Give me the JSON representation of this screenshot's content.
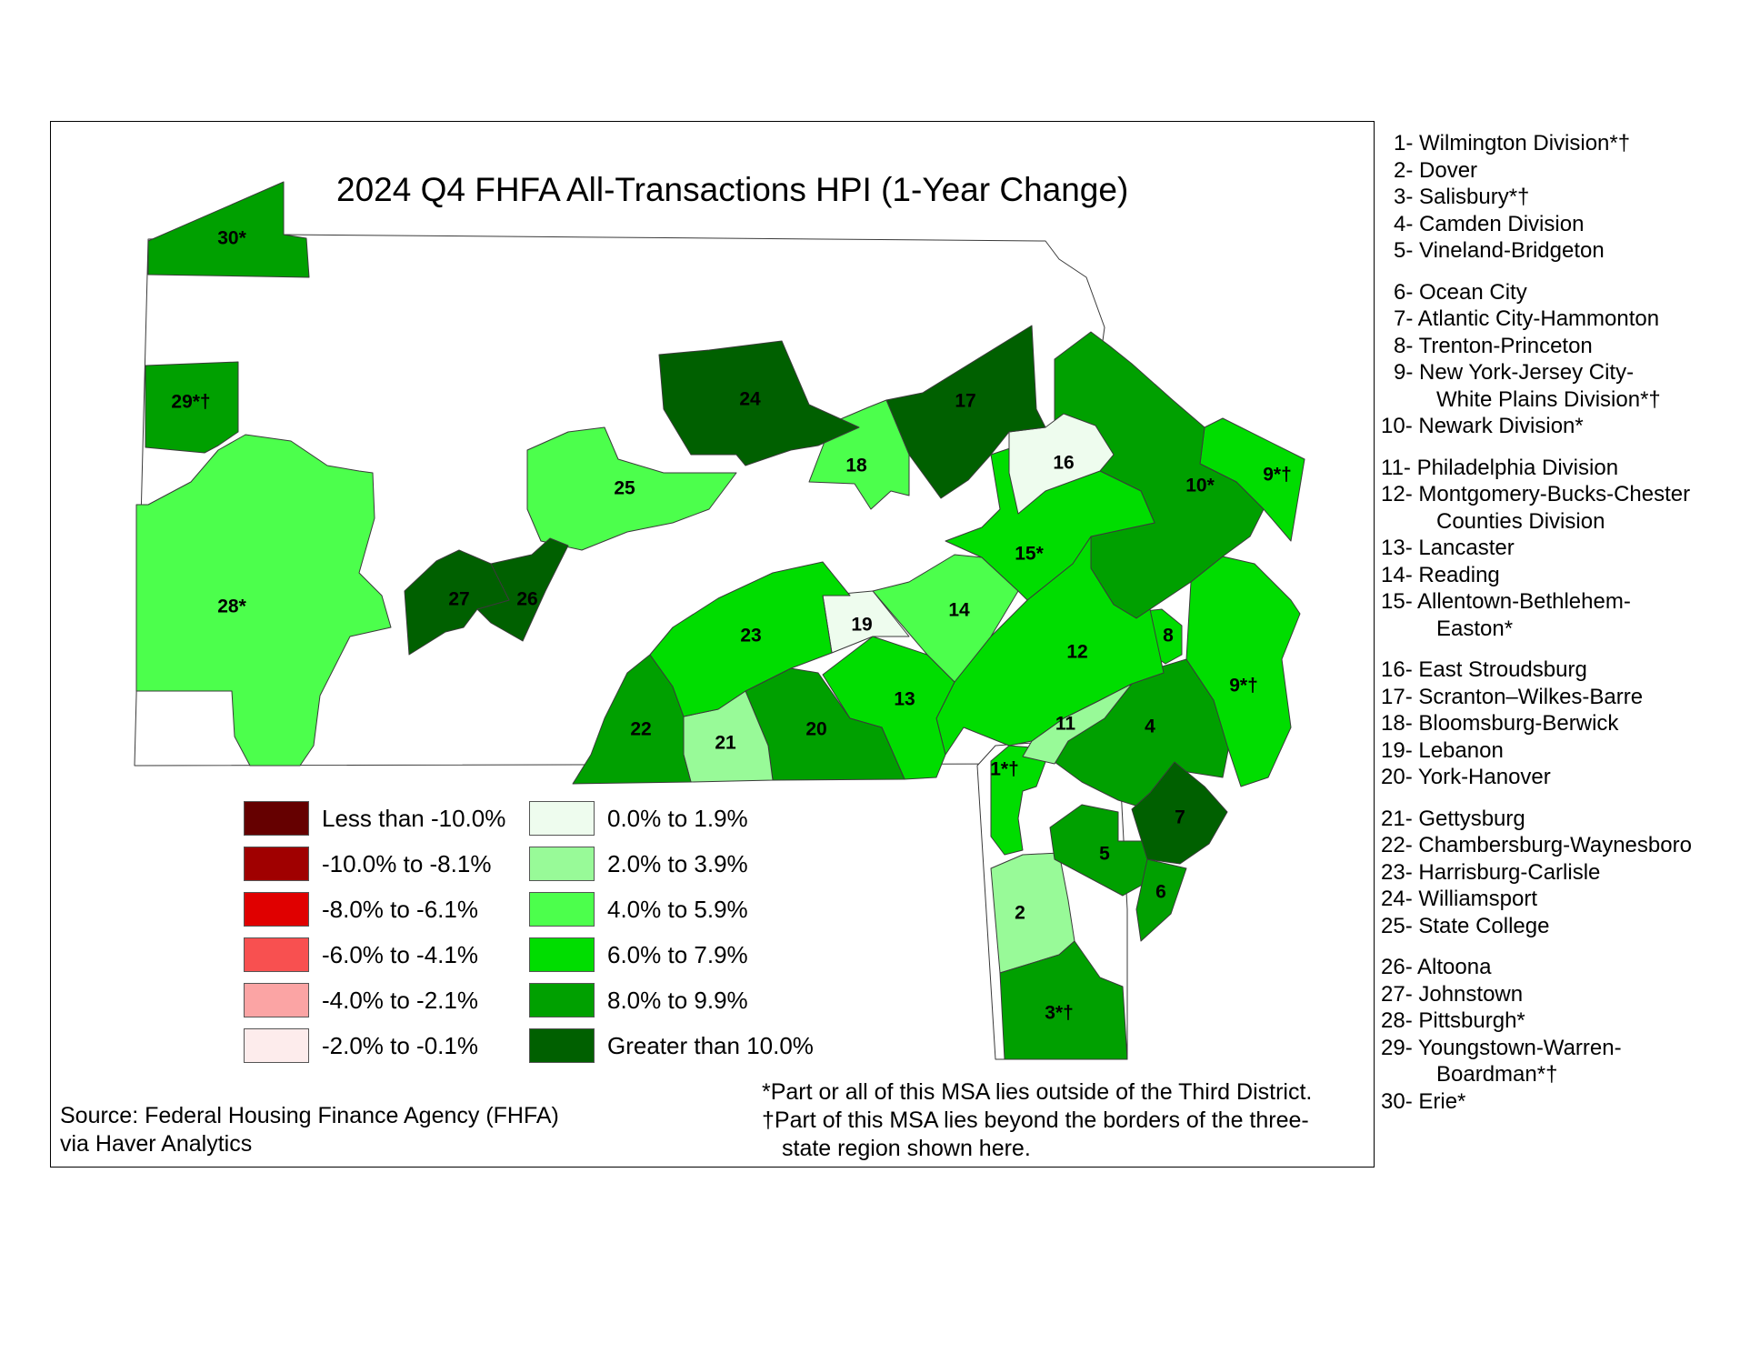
{
  "title": "2024 Q4 FHFA All-Transactions HPI (1-Year Change)",
  "legend": [
    {
      "label": "Less than -10.0%",
      "color": "#650000"
    },
    {
      "label": "-10.0% to -8.1%",
      "color": "#a00000"
    },
    {
      "label": "-8.0% to -6.1%",
      "color": "#e00000"
    },
    {
      "label": "-6.0% to -4.1%",
      "color": "#f85050"
    },
    {
      "label": "-4.0% to -2.1%",
      "color": "#fba4a4"
    },
    {
      "label": "-2.0% to -0.1%",
      "color": "#fdecec"
    },
    {
      "label": "0.0% to 1.9%",
      "color": "#eefcee"
    },
    {
      "label": "2.0% to 3.9%",
      "color": "#98fa98"
    },
    {
      "label": "4.0% to 5.9%",
      "color": "#4cff4c"
    },
    {
      "label": "6.0% to 7.9%",
      "color": "#00dd00"
    },
    {
      "label": "8.0% to 9.9%",
      "color": "#00a000"
    },
    {
      "label": "Greater than 10.0%",
      "color": "#006000"
    }
  ],
  "regions": [
    {
      "label": "1*†",
      "bin": 9
    },
    {
      "label": "2",
      "bin": 7
    },
    {
      "label": "3*†",
      "bin": 10
    },
    {
      "label": "4",
      "bin": 10
    },
    {
      "label": "5",
      "bin": 10
    },
    {
      "label": "6",
      "bin": 10
    },
    {
      "label": "7",
      "bin": 11
    },
    {
      "label": "8",
      "bin": 9
    },
    {
      "label": "9*†",
      "bin": 9
    },
    {
      "label": "9*†",
      "bin": 9
    },
    {
      "label": "10*",
      "bin": 10
    },
    {
      "label": "11",
      "bin": 7
    },
    {
      "label": "12",
      "bin": 9
    },
    {
      "label": "13",
      "bin": 9
    },
    {
      "label": "14",
      "bin": 8
    },
    {
      "label": "15*",
      "bin": 9
    },
    {
      "label": "16",
      "bin": 6
    },
    {
      "label": "17",
      "bin": 11
    },
    {
      "label": "18",
      "bin": 8
    },
    {
      "label": "19",
      "bin": 6
    },
    {
      "label": "20",
      "bin": 10
    },
    {
      "label": "21",
      "bin": 7
    },
    {
      "label": "22",
      "bin": 10
    },
    {
      "label": "23",
      "bin": 9
    },
    {
      "label": "24",
      "bin": 11
    },
    {
      "label": "25",
      "bin": 8
    },
    {
      "label": "26",
      "bin": 11
    },
    {
      "label": "27",
      "bin": 11
    },
    {
      "label": "28*",
      "bin": 8
    },
    {
      "label": "29*†",
      "bin": 10
    },
    {
      "label": "30*",
      "bin": 10
    }
  ],
  "key": [
    [
      "1- Wilmington Division*†",
      "2- Dover",
      "3- Salisbury*†",
      "4- Camden Division",
      "5- Vineland-Bridgeton"
    ],
    [
      "6- Ocean City",
      "7- Atlantic City-Hammonton",
      "8- Trenton-Princeton",
      "9- New York-Jersey City-",
      "   White Plains Division*†",
      "10- Newark Division*"
    ],
    [
      "11- Philadelphia Division",
      "12- Montgomery-Bucks-Chester",
      "   Counties Division",
      "13- Lancaster",
      "14- Reading",
      "15- Allentown-Bethlehem-",
      "   Easton*"
    ],
    [
      "16- East Stroudsburg",
      "17- Scranton–Wilkes-Barre",
      "18- Bloomsburg-Berwick",
      "19- Lebanon",
      "20- York-Hanover"
    ],
    [
      "21- Gettysburg",
      "22- Chambersburg-Waynesboro",
      "23- Harrisburg-Carlisle",
      "24- Williamsport",
      "25- State College"
    ],
    [
      "26- Altoona",
      "27- Johnstown",
      "28- Pittsburgh*",
      "29- Youngstown-Warren-",
      "   Boardman*†",
      "30- Erie*"
    ]
  ],
  "source": [
    "Source: Federal Housing Finance Agency (FHFA)",
    "via Haver Analytics"
  ],
  "notes": [
    "*Part or all of this MSA lies outside of the Third District.",
    "†Part of this MSA lies beyond the borders of the three-",
    "state region shown here."
  ]
}
